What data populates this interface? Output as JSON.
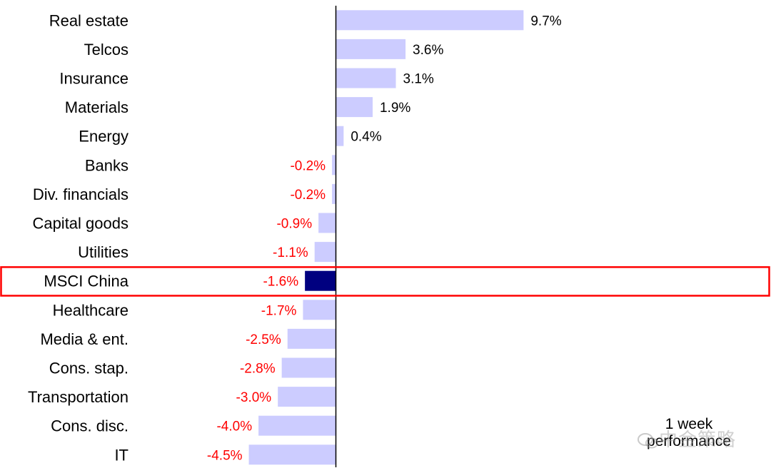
{
  "chart_data": {
    "type": "bar",
    "orientation": "horizontal",
    "categories": [
      "Real estate",
      "Telcos",
      "Insurance",
      "Materials",
      "Energy",
      "Banks",
      "Div. financials",
      "Capital goods",
      "Utilities",
      "MSCI China",
      "Healthcare",
      "Media & ent.",
      "Cons. stap.",
      "Transportation",
      "Cons. disc.",
      "IT"
    ],
    "values": [
      9.7,
      3.6,
      3.1,
      1.9,
      0.4,
      -0.2,
      -0.2,
      -0.9,
      -1.1,
      -1.6,
      -1.7,
      -2.5,
      -2.8,
      -3.0,
      -4.0,
      -4.5
    ],
    "value_labels": [
      "9.7%",
      "3.6%",
      "3.1%",
      "1.9%",
      "0.4%",
      "-0.2%",
      "-0.2%",
      "-0.9%",
      "-1.1%",
      "-1.6%",
      "-1.7%",
      "-2.5%",
      "-2.8%",
      "-3.0%",
      "-4.0%",
      "-4.5%"
    ],
    "highlight_category": "MSCI China",
    "note": "1 week performance",
    "colors": {
      "bar": "#ccccff",
      "highlight_bar": "#000080",
      "highlight_box": "#ff0000",
      "negative_label": "#ff0000",
      "positive_label": "#000000",
      "axis": "#000000"
    },
    "grid": false
  },
  "watermark": "中金策略"
}
